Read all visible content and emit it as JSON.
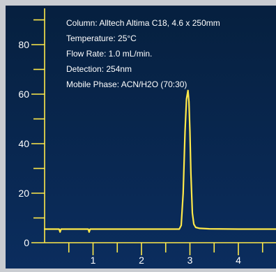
{
  "chart_data": {
    "type": "line",
    "title": "",
    "xlabel": "",
    "ylabel": "",
    "xlim": [
      0,
      5
    ],
    "ylim": [
      -4,
      95
    ],
    "x_ticks": [
      1,
      2,
      3,
      4
    ],
    "x_tick_labels": [
      "1",
      "2",
      "3",
      "4"
    ],
    "y_ticks": [
      0,
      20,
      40,
      60,
      80
    ],
    "y_tick_labels": [
      "0",
      "20",
      "40",
      "60",
      "80"
    ],
    "annotations": [
      "Column: Alltech Altima C18, 4.6 x 250mm",
      "Temperature: 25°C",
      "Flow Rate: 1.0 mL/min.",
      "Detection: 254nm",
      "Mobile Phase: ACN/H2O (70:30)"
    ],
    "series": [
      {
        "color": "#ffe94a",
        "x": [
          0.0,
          0.3,
          0.32,
          0.34,
          0.9,
          0.92,
          0.94,
          2.78,
          2.82,
          2.86,
          2.9,
          2.93,
          2.96,
          2.98,
          3.0,
          3.02,
          3.05,
          3.08,
          3.12,
          3.2,
          3.4,
          4.0,
          4.85,
          4.87,
          4.9,
          5.0
        ],
        "y": [
          5.5,
          5.5,
          4.3,
          5.5,
          5.5,
          4.3,
          5.5,
          5.5,
          7.0,
          20.0,
          45.0,
          58.0,
          61.5,
          57.0,
          45.0,
          28.0,
          12.0,
          7.5,
          6.2,
          5.8,
          5.6,
          5.5,
          5.5,
          4.3,
          5.5,
          5.5
        ]
      }
    ],
    "grid": false,
    "legend": "none",
    "colors": {
      "background_top": "#06203f",
      "background_bottom": "#0b2d5e",
      "axis": "#ffe94a",
      "text": "#ffffff",
      "frame": "#c9ccd1"
    }
  }
}
